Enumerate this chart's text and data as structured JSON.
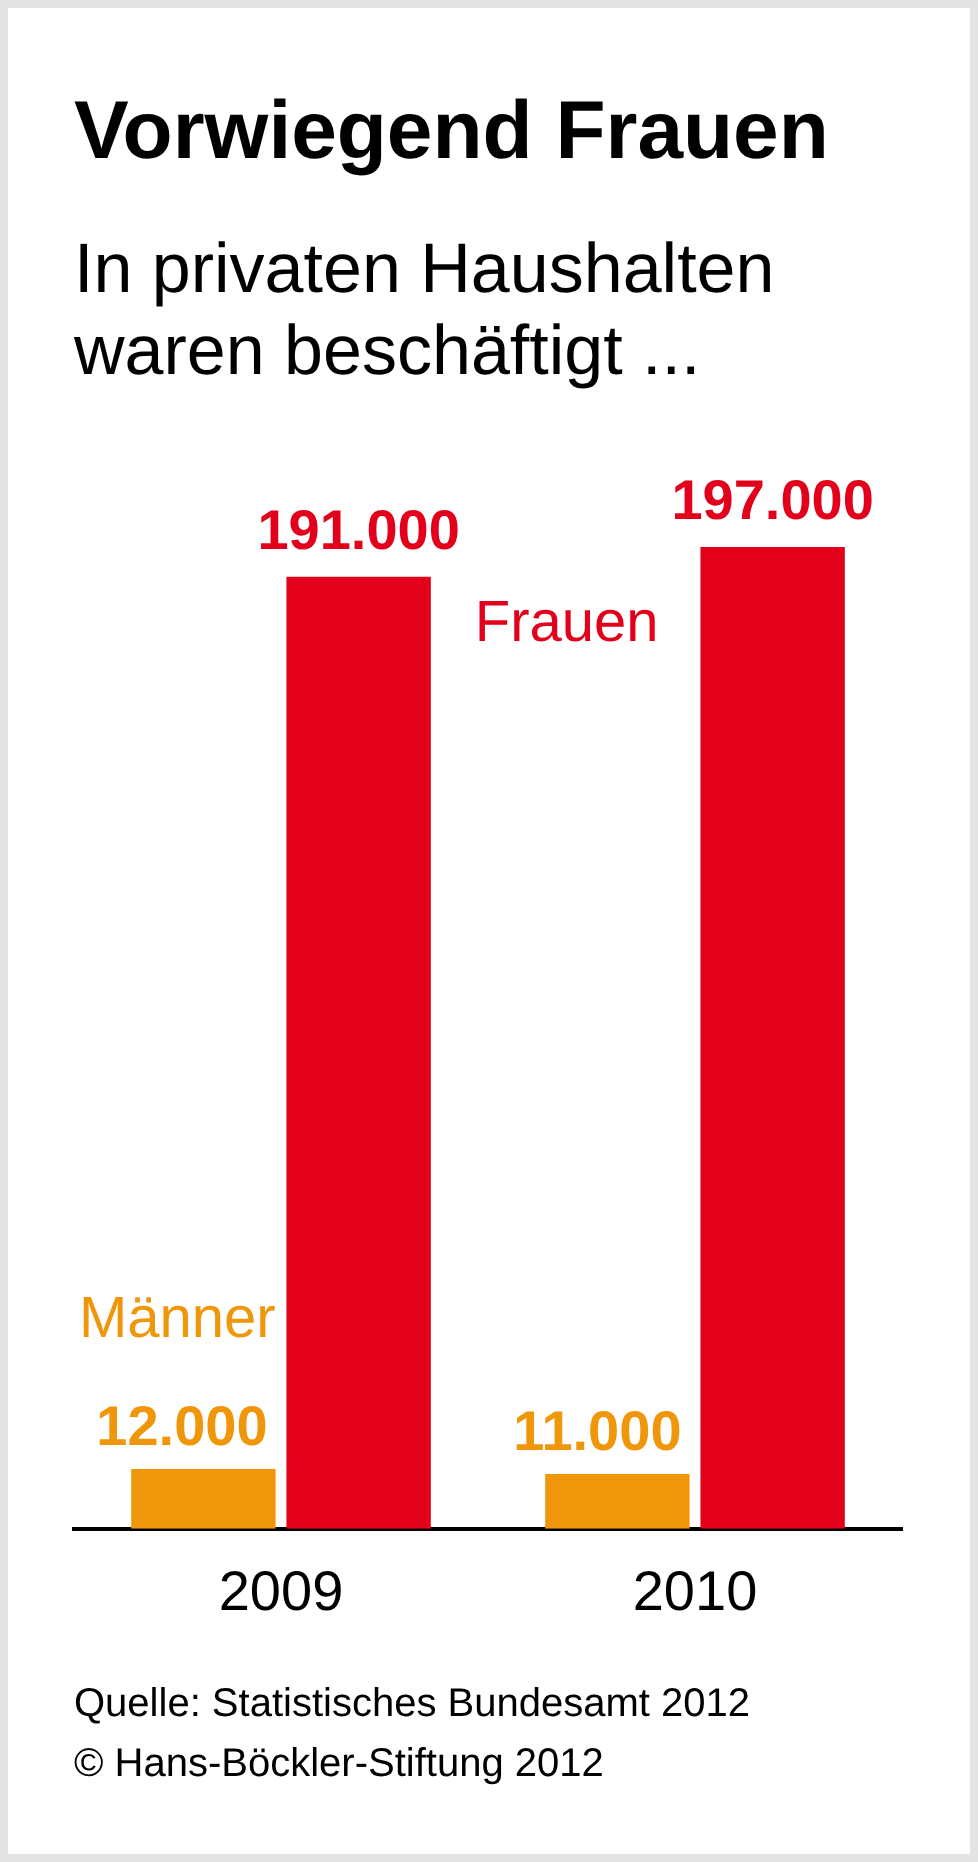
{
  "chart_data": {
    "type": "bar",
    "title": "Vorwiegend Frauen",
    "subtitle": "In privaten Haushalten waren beschäftigt ...",
    "categories": [
      "2009",
      "2010"
    ],
    "series": [
      {
        "name": "Männer",
        "color": "#f0960a",
        "values": [
          12000,
          11000
        ],
        "value_labels": [
          "12.000",
          "11.000"
        ]
      },
      {
        "name": "Frauen",
        "color": "#e2001a",
        "values": [
          191000,
          197000
        ],
        "value_labels": [
          "191.000",
          "197.000"
        ]
      }
    ],
    "legend": false,
    "grid": false,
    "annotations": [
      "Quelle: Statistisches Bundesamt 2012",
      "© Hans-Böckler-Stiftung 2012"
    ]
  }
}
